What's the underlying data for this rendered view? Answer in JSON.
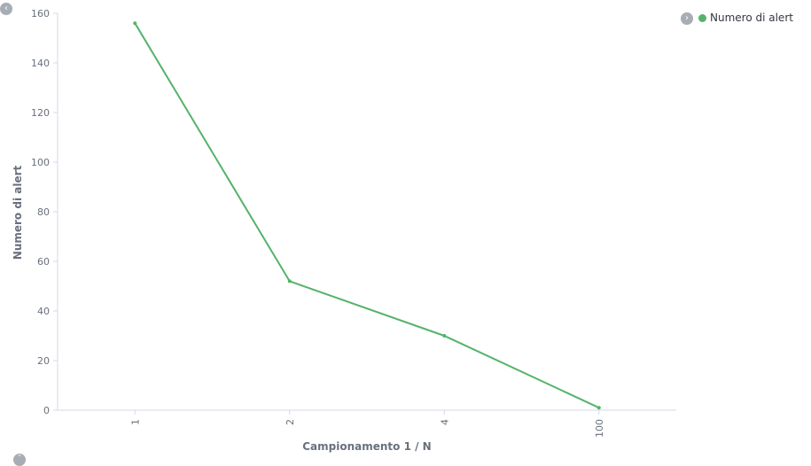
{
  "chart_data": {
    "type": "line",
    "categories": [
      "1",
      "2",
      "4",
      "100"
    ],
    "series": [
      {
        "name": "Numero di alert",
        "values": [
          156,
          52,
          30,
          1
        ],
        "color": "#54b36a"
      }
    ],
    "xlabel": "Campionamento 1 / N",
    "ylabel": "Numero di alert",
    "ylim": [
      0,
      160
    ],
    "yticks": [
      "0",
      "20",
      "40",
      "60",
      "80",
      "100",
      "120",
      "140",
      "160"
    ],
    "grid": false,
    "legend": "top-right"
  },
  "icons": {
    "collapse_left": "chevron-left-icon",
    "legend_toggle": "chevron-right-icon",
    "bottom_toggle": "chevron-up-icon"
  }
}
